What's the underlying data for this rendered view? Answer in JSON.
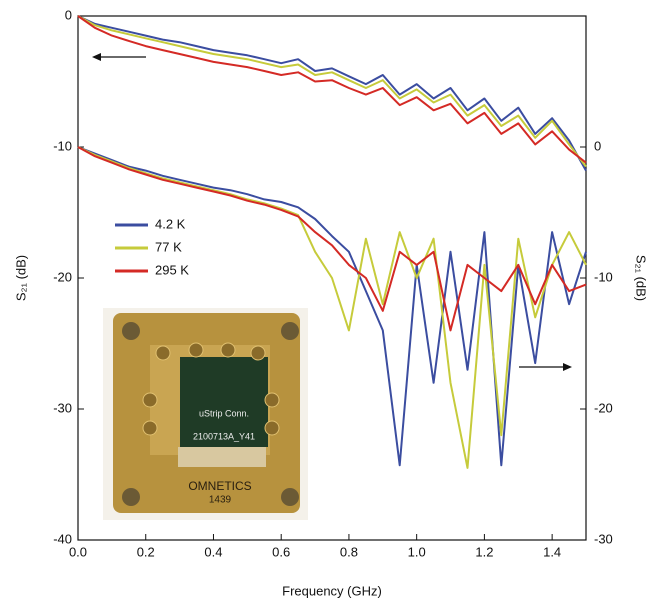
{
  "chart_data": {
    "type": "line",
    "xlabel": "Frequency (GHz)",
    "ylabel": "S₂₁ (dB)",
    "y2label": "S₂₁ (dB)",
    "xlim": [
      0,
      1.5
    ],
    "xticks": [
      {
        "value": 0,
        "label": "0.0"
      },
      {
        "value": 0.2,
        "label": "0.2"
      },
      {
        "value": 0.4,
        "label": "0.4"
      },
      {
        "value": 0.6,
        "label": "0.6"
      },
      {
        "value": 0.8,
        "label": "0.8"
      },
      {
        "value": 1.0,
        "label": "1.0"
      },
      {
        "value": 1.2,
        "label": "1.2"
      },
      {
        "value": 1.4,
        "label": "1.4"
      }
    ],
    "ylim": [
      -40,
      0
    ],
    "yticks": [
      0,
      -10,
      -20,
      -30,
      -40
    ],
    "y2lim": [
      -30,
      10
    ],
    "y2ticks": [
      0,
      -10,
      -20,
      -30
    ],
    "x": [
      0,
      0.05,
      0.1,
      0.15,
      0.2,
      0.25,
      0.3,
      0.35,
      0.4,
      0.45,
      0.5,
      0.55,
      0.6,
      0.65,
      0.7,
      0.75,
      0.8,
      0.85,
      0.9,
      0.95,
      1.0,
      1.05,
      1.1,
      1.15,
      1.2,
      1.25,
      1.3,
      1.35,
      1.4,
      1.45,
      1.5
    ],
    "series": [
      {
        "name": "4.2 K",
        "color": "#3b4da0",
        "values": [
          0,
          -0.6,
          -0.9,
          -1.2,
          -1.5,
          -1.8,
          -2.0,
          -2.3,
          -2.6,
          -2.8,
          -3.0,
          -3.3,
          -3.6,
          -3.3,
          -4.2,
          -4.0,
          -4.6,
          -5.2,
          -4.5,
          -6.0,
          -5.2,
          -6.3,
          -5.5,
          -7.2,
          -6.3,
          -8.0,
          -7.0,
          -9.0,
          -7.8,
          -9.5,
          -11.8
        ]
      },
      {
        "name": "77 K",
        "color": "#c6cb3b",
        "values": [
          0,
          -0.7,
          -1.1,
          -1.4,
          -1.7,
          -2.0,
          -2.3,
          -2.6,
          -2.9,
          -3.1,
          -3.3,
          -3.6,
          -3.9,
          -3.7,
          -4.5,
          -4.3,
          -4.9,
          -5.5,
          -4.9,
          -6.3,
          -5.6,
          -6.6,
          -6.0,
          -7.6,
          -6.8,
          -8.4,
          -7.6,
          -9.3,
          -8.0,
          -9.8,
          -11.5
        ]
      },
      {
        "name": "295 K",
        "color": "#d42a25",
        "values": [
          0,
          -0.9,
          -1.5,
          -1.9,
          -2.3,
          -2.6,
          -2.9,
          -3.2,
          -3.5,
          -3.7,
          -3.9,
          -4.2,
          -4.5,
          -4.3,
          -5.0,
          -4.9,
          -5.5,
          -6.0,
          -5.5,
          -6.8,
          -6.2,
          -7.2,
          -6.7,
          -8.2,
          -7.4,
          -9.0,
          -8.2,
          -9.8,
          -8.8,
          -10.2,
          -11.2
        ]
      },
      {
        "name": "4.2 K",
        "color": "#3b4da0",
        "axis": "y2",
        "values": [
          0,
          -0.5,
          -1.0,
          -1.5,
          -1.8,
          -2.2,
          -2.5,
          -2.8,
          -3.1,
          -3.3,
          -3.6,
          -4.0,
          -4.2,
          -4.6,
          -5.5,
          -6.8,
          -8.0,
          -11,
          -14,
          -24.3,
          -9,
          -18,
          -8,
          -17,
          -6.5,
          -24.3,
          -9,
          -16.5,
          -6.5,
          -12,
          -8
        ]
      },
      {
        "name": "77 K",
        "color": "#c6cb3b",
        "axis": "y2",
        "values": [
          0,
          -0.6,
          -1.1,
          -1.6,
          -2.0,
          -2.4,
          -2.7,
          -3.0,
          -3.3,
          -3.6,
          -4.0,
          -4.3,
          -4.7,
          -5.2,
          -8,
          -10,
          -14,
          -7,
          -12,
          -6.5,
          -10,
          -7,
          -18,
          -24.5,
          -9,
          -22,
          -7,
          -13,
          -9,
          -6.5,
          -9
        ]
      },
      {
        "name": "295 K",
        "color": "#d42a25",
        "axis": "y2",
        "values": [
          0,
          -0.7,
          -1.2,
          -1.7,
          -2.1,
          -2.5,
          -2.8,
          -3.1,
          -3.4,
          -3.7,
          -4.1,
          -4.4,
          -4.8,
          -5.3,
          -6.5,
          -7.5,
          -9,
          -10,
          -12.5,
          -8,
          -9,
          -8,
          -14,
          -9,
          -10,
          -11,
          -9,
          -12,
          -9,
          -11,
          -10.5
        ]
      }
    ],
    "inset_labels": [
      "uStrip Conn.",
      "2100713A_Y41",
      "OMNETICS",
      "1439"
    ]
  }
}
